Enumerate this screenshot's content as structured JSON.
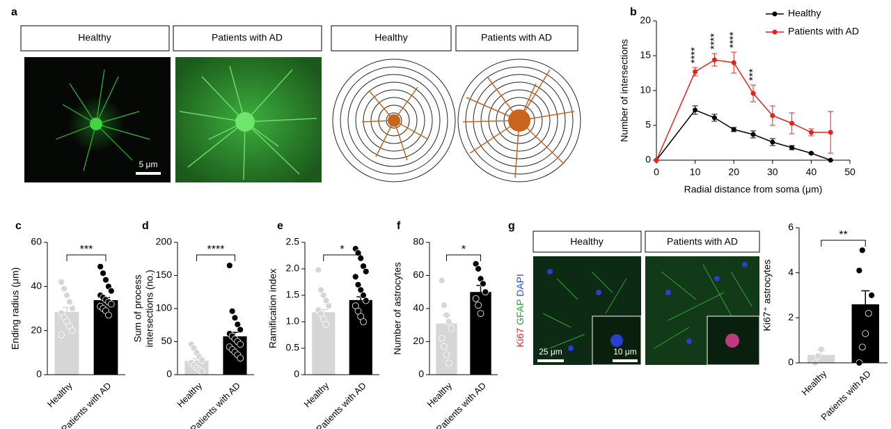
{
  "panel_a": {
    "letter": "a",
    "headers": [
      "Healthy",
      "Patients with AD",
      "Healthy",
      "Patients with AD"
    ],
    "scale_bar": "5 μm"
  },
  "panel_g": {
    "letter": "g",
    "headers": [
      "Healthy",
      "Patients with AD"
    ],
    "stain": [
      "Ki67",
      "GFAP",
      "DAPI"
    ],
    "scale_bars": [
      "25 μm",
      "10 μm"
    ]
  },
  "chart_data": [
    {
      "type": "line",
      "panel": "b",
      "xlabel": "Radial distance from soma (μm)",
      "ylabel": "Number of intersections",
      "x": [
        0,
        10,
        15,
        20,
        25,
        30,
        35,
        40,
        45
      ],
      "series": [
        {
          "name": "Healthy",
          "color": "#000000",
          "values": [
            0,
            7.2,
            6.1,
            4.4,
            3.7,
            2.6,
            1.8,
            1.0,
            0
          ],
          "errors": [
            0,
            0.6,
            0.5,
            0.3,
            0.5,
            0.5,
            0.3,
            0.1,
            0
          ]
        },
        {
          "name": "Patients with AD",
          "color": "#e8201c",
          "values": [
            0,
            12.7,
            14.4,
            14.0,
            9.6,
            6.4,
            5.3,
            4.0,
            4.0
          ],
          "errors": [
            0,
            0.6,
            0.9,
            1.5,
            1.2,
            1.4,
            1.5,
            0.5,
            3.0
          ]
        }
      ],
      "significance": [
        null,
        "****",
        "****",
        "****",
        "***",
        null,
        null,
        null,
        null
      ],
      "xlim": [
        0,
        50
      ],
      "xticks": [
        0,
        10,
        20,
        30,
        40,
        50
      ],
      "ylim": [
        0,
        20
      ],
      "yticks": [
        0,
        5,
        10,
        15,
        20
      ],
      "legend": "upper right"
    },
    {
      "type": "bar",
      "panel": "c",
      "ylabel": "Ending radius (μm)",
      "categories": [
        "Healthy",
        "Patients with AD"
      ],
      "colors": [
        "#d6d6d6",
        "#000000"
      ],
      "values": [
        28.5,
        33.8
      ],
      "errors": [
        2,
        1.2
      ],
      "points": [
        [
          42,
          39,
          36,
          33,
          30,
          28,
          26,
          24,
          22,
          20,
          18
        ],
        [
          49,
          46,
          43,
          40,
          38,
          36,
          35,
          34,
          33,
          32,
          31,
          30,
          29,
          27
        ]
      ],
      "significance": "***",
      "ylim": [
        0,
        60
      ],
      "yticks": [
        0,
        20,
        40,
        60
      ]
    },
    {
      "type": "bar",
      "panel": "d",
      "ylabel": [
        "Sum of process",
        "intersections (no.)"
      ],
      "categories": [
        "Healthy",
        "Patients with AD"
      ],
      "colors": [
        "#d6d6d6",
        "#000000"
      ],
      "values": [
        21,
        58
      ],
      "errors": [
        3,
        6
      ],
      "points": [
        [
          46,
          40,
          33,
          27,
          22,
          18,
          14,
          10,
          7,
          5
        ],
        [
          165,
          96,
          86,
          76,
          68,
          62,
          58,
          54,
          50,
          46,
          42,
          38,
          34,
          30,
          25
        ]
      ],
      "significance": "****",
      "ylim": [
        0,
        200
      ],
      "yticks": [
        0,
        50,
        100,
        150,
        200
      ]
    },
    {
      "type": "bar",
      "panel": "e",
      "ylabel": "Ramification index",
      "categories": [
        "Healthy",
        "Patients with AD"
      ],
      "colors": [
        "#d6d6d6",
        "#000000"
      ],
      "values": [
        1.18,
        1.41
      ],
      "errors": [
        0.05,
        0.06
      ],
      "points": [
        [
          1.98,
          1.6,
          1.5,
          1.4,
          1.3,
          1.22,
          1.15,
          1.05,
          0.95
        ],
        [
          2.38,
          2.3,
          2.2,
          2.05,
          1.95,
          1.85,
          1.7,
          1.6,
          1.5,
          1.4,
          1.3,
          1.2,
          1.1,
          1.0
        ]
      ],
      "significance": "*",
      "ylim": [
        0,
        2.5
      ],
      "yticks": [
        0,
        0.5,
        {
          "value": 1,
          "label": "1.0"
        },
        1.5,
        {
          "value": 2,
          "label": "2.0"
        },
        2.5
      ]
    },
    {
      "type": "bar",
      "panel": "f",
      "ylabel": "Number of astrocytes",
      "categories": [
        "Healthy",
        "Patients with AD"
      ],
      "colors": [
        "#d6d6d6",
        "#000000"
      ],
      "values": [
        31,
        50
      ],
      "errors": [
        5,
        4
      ],
      "points": [
        [
          57,
          42,
          36,
          32,
          28,
          22,
          17,
          12,
          7
        ],
        [
          67,
          64,
          58,
          55,
          50,
          46,
          42,
          37
        ]
      ],
      "significance": "*",
      "ylim": [
        0,
        80
      ],
      "yticks": [
        0,
        20,
        40,
        60,
        80
      ]
    },
    {
      "type": "bar",
      "ylabel": "Ki67⁺ astrocytes",
      "categories": [
        "Healthy",
        "Patients with AD"
      ],
      "colors": [
        "#d6d6d6",
        "#000000"
      ],
      "values": [
        0.35,
        2.6
      ],
      "errors": [
        0.2,
        0.6
      ],
      "points": [
        [
          0,
          0.3,
          0.6
        ],
        [
          0,
          0.7,
          1.3,
          2.2,
          3.0,
          4.1,
          5.0
        ]
      ],
      "significance": "**",
      "ylim": [
        0,
        6
      ],
      "yticks": [
        0,
        2,
        4,
        6
      ]
    }
  ]
}
